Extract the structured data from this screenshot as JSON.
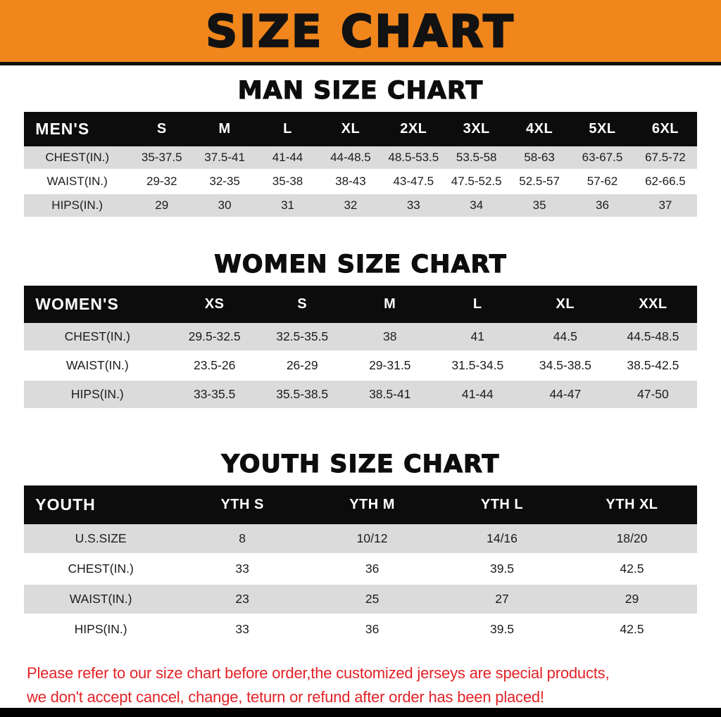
{
  "banner": {
    "title": "SIZE CHART"
  },
  "theme": {
    "banner_bg": "#f0861c",
    "header_bg": "#0c0c0c",
    "row_alt_bg": "#dbdbdb",
    "footer_text_color": "#e32227"
  },
  "sections": [
    {
      "id": "men",
      "heading": "MAN SIZE CHART",
      "table": {
        "header": [
          "MEN'S",
          "S",
          "M",
          "L",
          "XL",
          "2XL",
          "3XL",
          "4XL",
          "5XL",
          "6XL"
        ],
        "rows": [
          [
            "CHEST(IN.)",
            "35-37.5",
            "37.5-41",
            "41-44",
            "44-48.5",
            "48.5-53.5",
            "53.5-58",
            "58-63",
            "63-67.5",
            "67.5-72"
          ],
          [
            "WAIST(IN.)",
            "29-32",
            "32-35",
            "35-38",
            "38-43",
            "43-47.5",
            "47.5-52.5",
            "52.5-57",
            "57-62",
            "62-66.5"
          ],
          [
            "HIPS(IN.)",
            "29",
            "30",
            "31",
            "32",
            "33",
            "34",
            "35",
            "36",
            "37"
          ]
        ]
      }
    },
    {
      "id": "women",
      "heading": "WOMEN SIZE CHART",
      "table": {
        "header": [
          "WOMEN'S",
          "XS",
          "S",
          "M",
          "L",
          "XL",
          "XXL"
        ],
        "rows": [
          [
            "CHEST(IN.)",
            "29.5-32.5",
            "32.5-35.5",
            "38",
            "41",
            "44.5",
            "44.5-48.5"
          ],
          [
            "WAIST(IN.)",
            "23.5-26",
            "26-29",
            "29-31.5",
            "31.5-34.5",
            "34.5-38.5",
            "38.5-42.5"
          ],
          [
            "HIPS(IN.)",
            "33-35.5",
            "35.5-38.5",
            "38.5-41",
            "41-44",
            "44-47",
            "47-50"
          ]
        ]
      }
    },
    {
      "id": "youth",
      "heading": "YOUTH SIZE CHART",
      "table": {
        "header": [
          "YOUTH",
          "YTH S",
          "YTH M",
          "YTH L",
          "YTH XL"
        ],
        "rows": [
          [
            "U.S.SIZE",
            "8",
            "10/12",
            "14/16",
            "18/20"
          ],
          [
            "CHEST(IN.)",
            "33",
            "36",
            "39.5",
            "42.5"
          ],
          [
            "WAIST(IN.)",
            "23",
            "25",
            "27",
            "29"
          ],
          [
            "HIPS(IN.)",
            "33",
            "36",
            "39.5",
            "42.5"
          ]
        ]
      }
    }
  ],
  "footer": {
    "lines": [
      "Please refer to our size chart before order,the customized jerseys are special products,",
      "we don't accept cancel, change, teturn or refund after order has been placed!"
    ]
  }
}
